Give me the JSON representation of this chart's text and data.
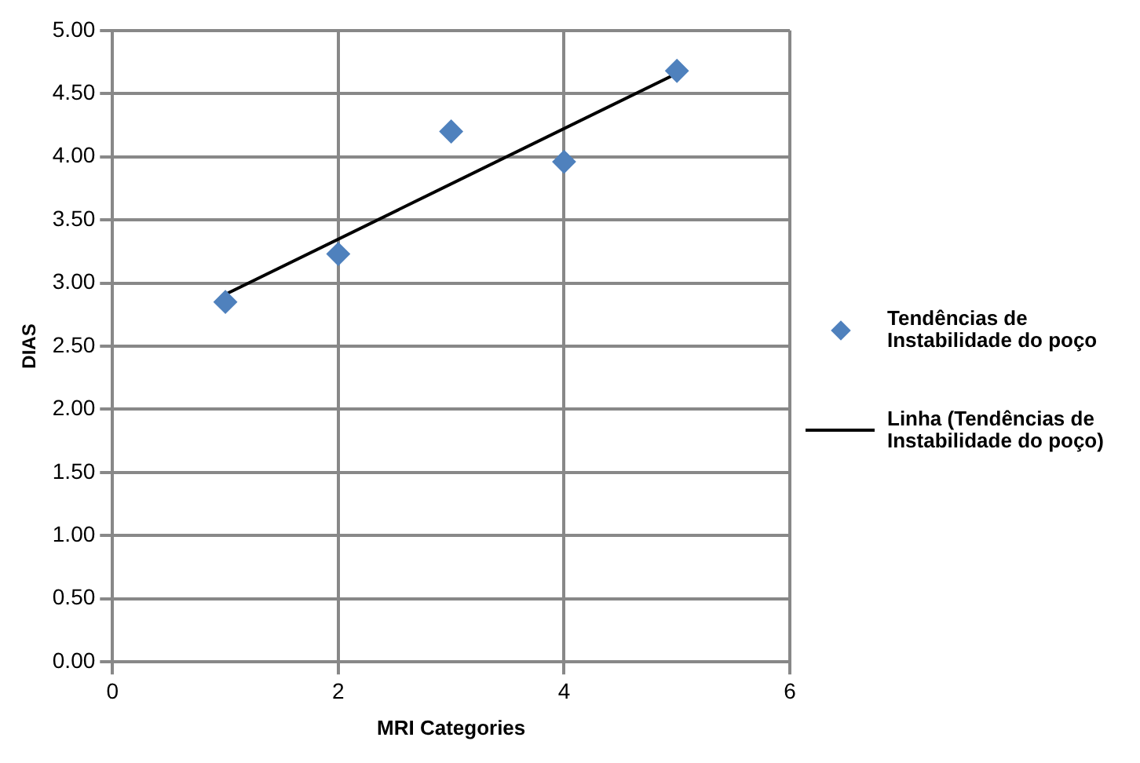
{
  "chart_data": {
    "type": "scatter",
    "xlabel": "MRI Categories",
    "ylabel": "DIAS",
    "xlim": [
      0,
      6
    ],
    "xticks": [
      0,
      2,
      4,
      6
    ],
    "ylim": [
      0,
      5
    ],
    "yticks": [
      {
        "value": 0,
        "label": "0.00"
      },
      {
        "value": 0.5,
        "label": "0.50"
      },
      {
        "value": 1,
        "label": "1.00"
      },
      {
        "value": 1.5,
        "label": "1.50"
      },
      {
        "value": 2,
        "label": "2.00"
      },
      {
        "value": 2.5,
        "label": "2.50"
      },
      {
        "value": 3,
        "label": "3.00"
      },
      {
        "value": 3.5,
        "label": "3.50"
      },
      {
        "value": 4,
        "label": "4.00"
      },
      {
        "value": 4.5,
        "label": "4.50"
      },
      {
        "value": 5,
        "label": "5.00"
      }
    ],
    "grid": true,
    "legend": "right",
    "series": [
      {
        "name": "Tendências de Instabilidade do poço",
        "type": "scatter",
        "marker": "diamond",
        "color": "#4f81bd",
        "x": [
          1,
          2,
          3,
          4,
          5
        ],
        "values": [
          2.85,
          3.23,
          4.2,
          3.96,
          4.68
        ]
      },
      {
        "name": "Linha (Tendências de Instabilidade do poço)",
        "type": "line",
        "marker": "none",
        "line_style": "solid",
        "color": "#000000",
        "x": [
          1,
          5
        ],
        "values": [
          2.91,
          4.66
        ]
      }
    ]
  }
}
